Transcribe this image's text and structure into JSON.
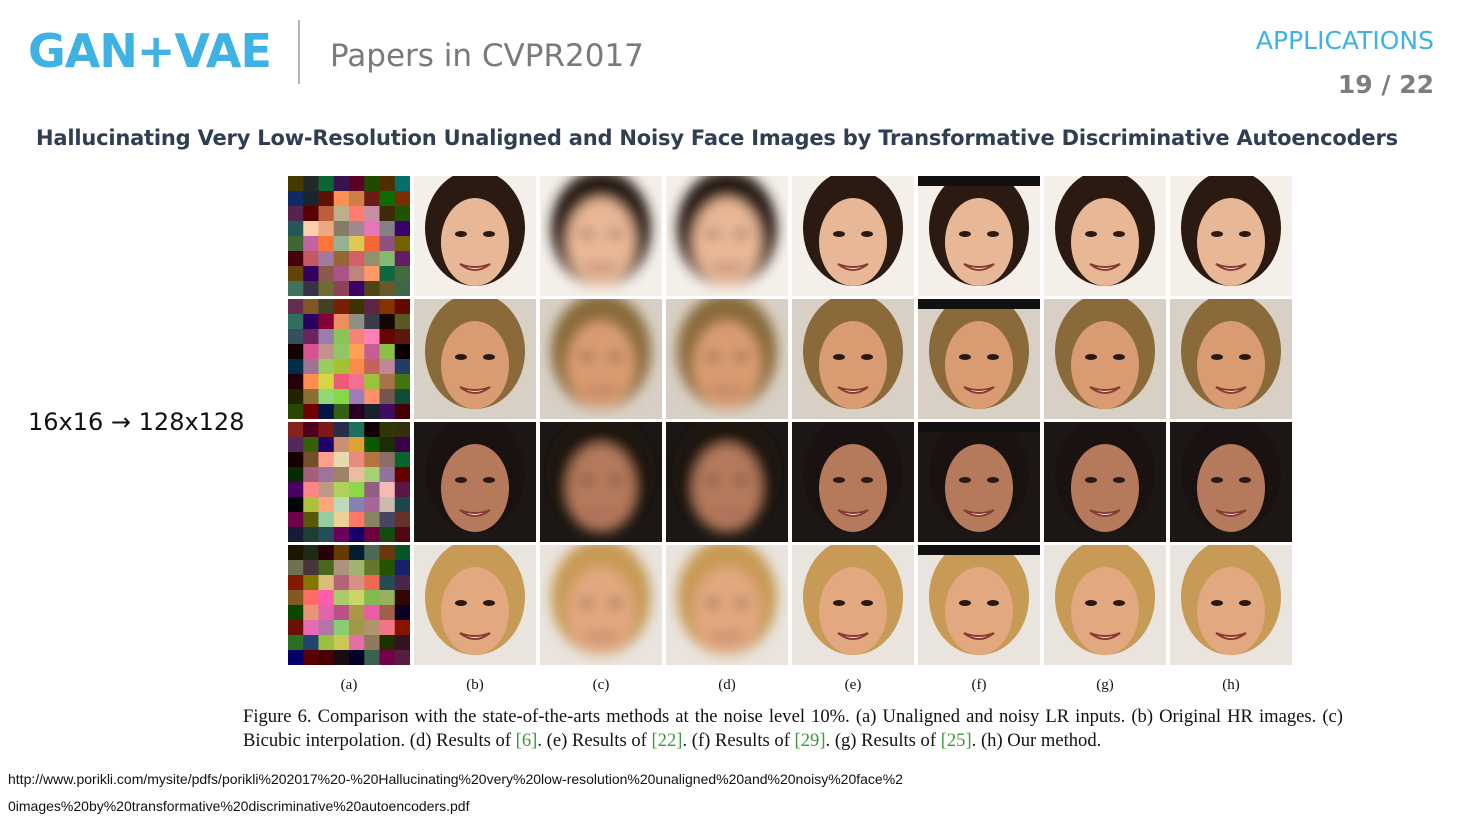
{
  "header": {
    "brand": "GAN+VAE",
    "subtitle": "Papers in CVPR2017",
    "section": "APPLICATIONS",
    "page": "19 / 22"
  },
  "paper_title": "Hallucinating Very Low-Resolution Unaligned and Noisy Face Images by Transformative Discriminative Autoencoders",
  "resolution_note": "16x16 → 128x128",
  "figure": {
    "column_labels": [
      "(a)",
      "(b)",
      "(c)",
      "(d)",
      "(e)",
      "(f)",
      "(g)",
      "(h)"
    ],
    "caption_parts": [
      "Figure 6. Comparison with the state-of-the-arts methods at the noise level 10%. (a) Unaligned and noisy LR inputs. (b) Original HR images. (c) Bicubic interpolation. (d) Results of ",
      "[6]",
      ". (e) Results of ",
      "[22]",
      ". (f) Results of ",
      "[29]",
      ". (g) Results of ",
      "[25]",
      ". (h) Our method."
    ]
  },
  "source_url": "http://www.porikli.com/mysite/pdfs/porikli%202017%20-%20Hallucinating%20very%20low-resolution%20unaligned%20and%20noisy%20face%20images%20by%20transformative%20discriminative%20autoencoders.pdf"
}
